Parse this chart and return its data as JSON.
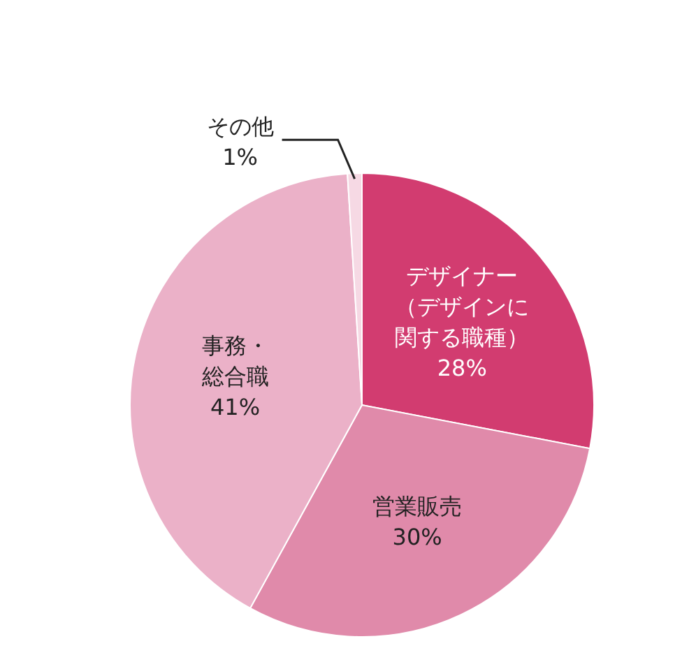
{
  "chart_data": {
    "type": "pie",
    "categories": [
      "デザイナー（デザインに関する職種）",
      "営業販売",
      "事務・総合職",
      "その他"
    ],
    "values": [
      28,
      30,
      41,
      1
    ],
    "colors": [
      "#d23c70",
      "#e08aaa",
      "#ebb1c8",
      "#f6d9e4"
    ],
    "value_labels": [
      "28%",
      "30%",
      "41%",
      "1%"
    ]
  }
}
